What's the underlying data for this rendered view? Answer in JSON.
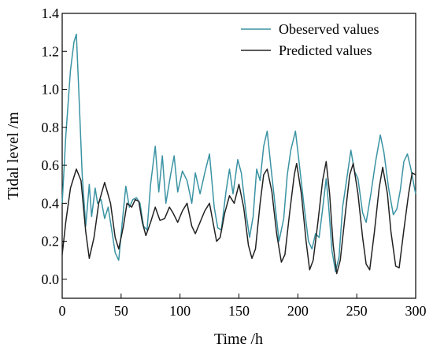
{
  "chart_data": {
    "type": "line",
    "xlabel": "Time /h",
    "ylabel": "Tidal level /m",
    "xlim": [
      0,
      300
    ],
    "ylim": [
      -0.1,
      1.4
    ],
    "xticks": [
      "0",
      "50",
      "100",
      "150",
      "200",
      "250",
      "300"
    ],
    "yticks": [
      "0.0",
      "0.2",
      "0.4",
      "0.6",
      "0.8",
      "1.0",
      "1.2",
      "1.4"
    ],
    "grid": false,
    "legend_position": "top-right",
    "series": [
      {
        "name": "Obeserved values",
        "color": "#3a93a3",
        "points": [
          [
            0,
            0.4
          ],
          [
            3,
            0.75
          ],
          [
            7,
            1.1
          ],
          [
            10,
            1.25
          ],
          [
            12,
            1.29
          ],
          [
            14,
            1.0
          ],
          [
            17,
            0.55
          ],
          [
            20,
            0.28
          ],
          [
            23,
            0.5
          ],
          [
            25,
            0.33
          ],
          [
            28,
            0.48
          ],
          [
            30,
            0.4
          ],
          [
            33,
            0.42
          ],
          [
            36,
            0.32
          ],
          [
            39,
            0.38
          ],
          [
            42,
            0.26
          ],
          [
            45,
            0.14
          ],
          [
            48,
            0.1
          ],
          [
            51,
            0.3
          ],
          [
            54,
            0.49
          ],
          [
            57,
            0.38
          ],
          [
            60,
            0.42
          ],
          [
            63,
            0.43
          ],
          [
            66,
            0.4
          ],
          [
            69,
            0.28
          ],
          [
            72,
            0.26
          ],
          [
            75,
            0.5
          ],
          [
            79,
            0.7
          ],
          [
            82,
            0.46
          ],
          [
            85,
            0.65
          ],
          [
            88,
            0.4
          ],
          [
            92,
            0.55
          ],
          [
            95,
            0.65
          ],
          [
            98,
            0.46
          ],
          [
            102,
            0.57
          ],
          [
            106,
            0.52
          ],
          [
            110,
            0.4
          ],
          [
            113,
            0.56
          ],
          [
            117,
            0.45
          ],
          [
            121,
            0.56
          ],
          [
            125,
            0.66
          ],
          [
            129,
            0.38
          ],
          [
            132,
            0.27
          ],
          [
            135,
            0.26
          ],
          [
            139,
            0.46
          ],
          [
            142,
            0.58
          ],
          [
            145,
            0.45
          ],
          [
            149,
            0.63
          ],
          [
            152,
            0.56
          ],
          [
            156,
            0.35
          ],
          [
            159,
            0.22
          ],
          [
            162,
            0.33
          ],
          [
            165,
            0.58
          ],
          [
            168,
            0.52
          ],
          [
            171,
            0.7
          ],
          [
            174,
            0.78
          ],
          [
            177,
            0.6
          ],
          [
            180,
            0.43
          ],
          [
            184,
            0.2
          ],
          [
            188,
            0.32
          ],
          [
            191,
            0.55
          ],
          [
            194,
            0.68
          ],
          [
            198,
            0.78
          ],
          [
            201,
            0.62
          ],
          [
            205,
            0.4
          ],
          [
            209,
            0.2
          ],
          [
            212,
            0.16
          ],
          [
            215,
            0.24
          ],
          [
            218,
            0.22
          ],
          [
            221,
            0.37
          ],
          [
            224,
            0.53
          ],
          [
            226,
            0.4
          ],
          [
            229,
            0.15
          ],
          [
            232,
            0.04
          ],
          [
            235,
            0.12
          ],
          [
            238,
            0.38
          ],
          [
            242,
            0.55
          ],
          [
            245,
            0.68
          ],
          [
            248,
            0.57
          ],
          [
            251,
            0.53
          ],
          [
            255,
            0.35
          ],
          [
            258,
            0.3
          ],
          [
            262,
            0.45
          ],
          [
            266,
            0.62
          ],
          [
            270,
            0.76
          ],
          [
            273,
            0.67
          ],
          [
            277,
            0.48
          ],
          [
            281,
            0.34
          ],
          [
            284,
            0.37
          ],
          [
            287,
            0.47
          ],
          [
            290,
            0.62
          ],
          [
            293,
            0.66
          ],
          [
            296,
            0.58
          ],
          [
            299,
            0.48
          ],
          [
            300,
            0.45
          ]
        ]
      },
      {
        "name": "Predicted values",
        "color": "#222222",
        "points": [
          [
            0,
            0.13
          ],
          [
            3,
            0.3
          ],
          [
            7,
            0.48
          ],
          [
            12,
            0.58
          ],
          [
            16,
            0.52
          ],
          [
            20,
            0.25
          ],
          [
            23,
            0.11
          ],
          [
            27,
            0.22
          ],
          [
            31,
            0.4
          ],
          [
            36,
            0.51
          ],
          [
            41,
            0.4
          ],
          [
            45,
            0.22
          ],
          [
            48,
            0.16
          ],
          [
            52,
            0.28
          ],
          [
            55,
            0.4
          ],
          [
            59,
            0.38
          ],
          [
            62,
            0.42
          ],
          [
            65,
            0.41
          ],
          [
            68,
            0.3
          ],
          [
            71,
            0.23
          ],
          [
            75,
            0.3
          ],
          [
            79,
            0.38
          ],
          [
            83,
            0.31
          ],
          [
            87,
            0.32
          ],
          [
            91,
            0.38
          ],
          [
            94,
            0.35
          ],
          [
            98,
            0.3
          ],
          [
            102,
            0.36
          ],
          [
            106,
            0.4
          ],
          [
            110,
            0.28
          ],
          [
            113,
            0.24
          ],
          [
            117,
            0.3
          ],
          [
            121,
            0.36
          ],
          [
            125,
            0.4
          ],
          [
            128,
            0.3
          ],
          [
            131,
            0.2
          ],
          [
            134,
            0.22
          ],
          [
            138,
            0.35
          ],
          [
            142,
            0.44
          ],
          [
            146,
            0.4
          ],
          [
            150,
            0.5
          ],
          [
            154,
            0.38
          ],
          [
            158,
            0.18
          ],
          [
            161,
            0.11
          ],
          [
            164,
            0.16
          ],
          [
            168,
            0.4
          ],
          [
            171,
            0.55
          ],
          [
            174,
            0.58
          ],
          [
            178,
            0.46
          ],
          [
            182,
            0.24
          ],
          [
            186,
            0.09
          ],
          [
            189,
            0.13
          ],
          [
            193,
            0.35
          ],
          [
            197,
            0.55
          ],
          [
            199,
            0.61
          ],
          [
            203,
            0.45
          ],
          [
            207,
            0.2
          ],
          [
            210,
            0.05
          ],
          [
            213,
            0.1
          ],
          [
            217,
            0.3
          ],
          [
            221,
            0.52
          ],
          [
            224,
            0.62
          ],
          [
            227,
            0.45
          ],
          [
            230,
            0.18
          ],
          [
            233,
            0.03
          ],
          [
            236,
            0.1
          ],
          [
            240,
            0.33
          ],
          [
            244,
            0.55
          ],
          [
            247,
            0.61
          ],
          [
            251,
            0.45
          ],
          [
            255,
            0.22
          ],
          [
            258,
            0.08
          ],
          [
            261,
            0.05
          ],
          [
            265,
            0.25
          ],
          [
            269,
            0.48
          ],
          [
            272,
            0.59
          ],
          [
            276,
            0.45
          ],
          [
            279,
            0.25
          ],
          [
            283,
            0.07
          ],
          [
            286,
            0.06
          ],
          [
            290,
            0.26
          ],
          [
            294,
            0.45
          ],
          [
            297,
            0.56
          ],
          [
            300,
            0.55
          ]
        ]
      }
    ]
  }
}
